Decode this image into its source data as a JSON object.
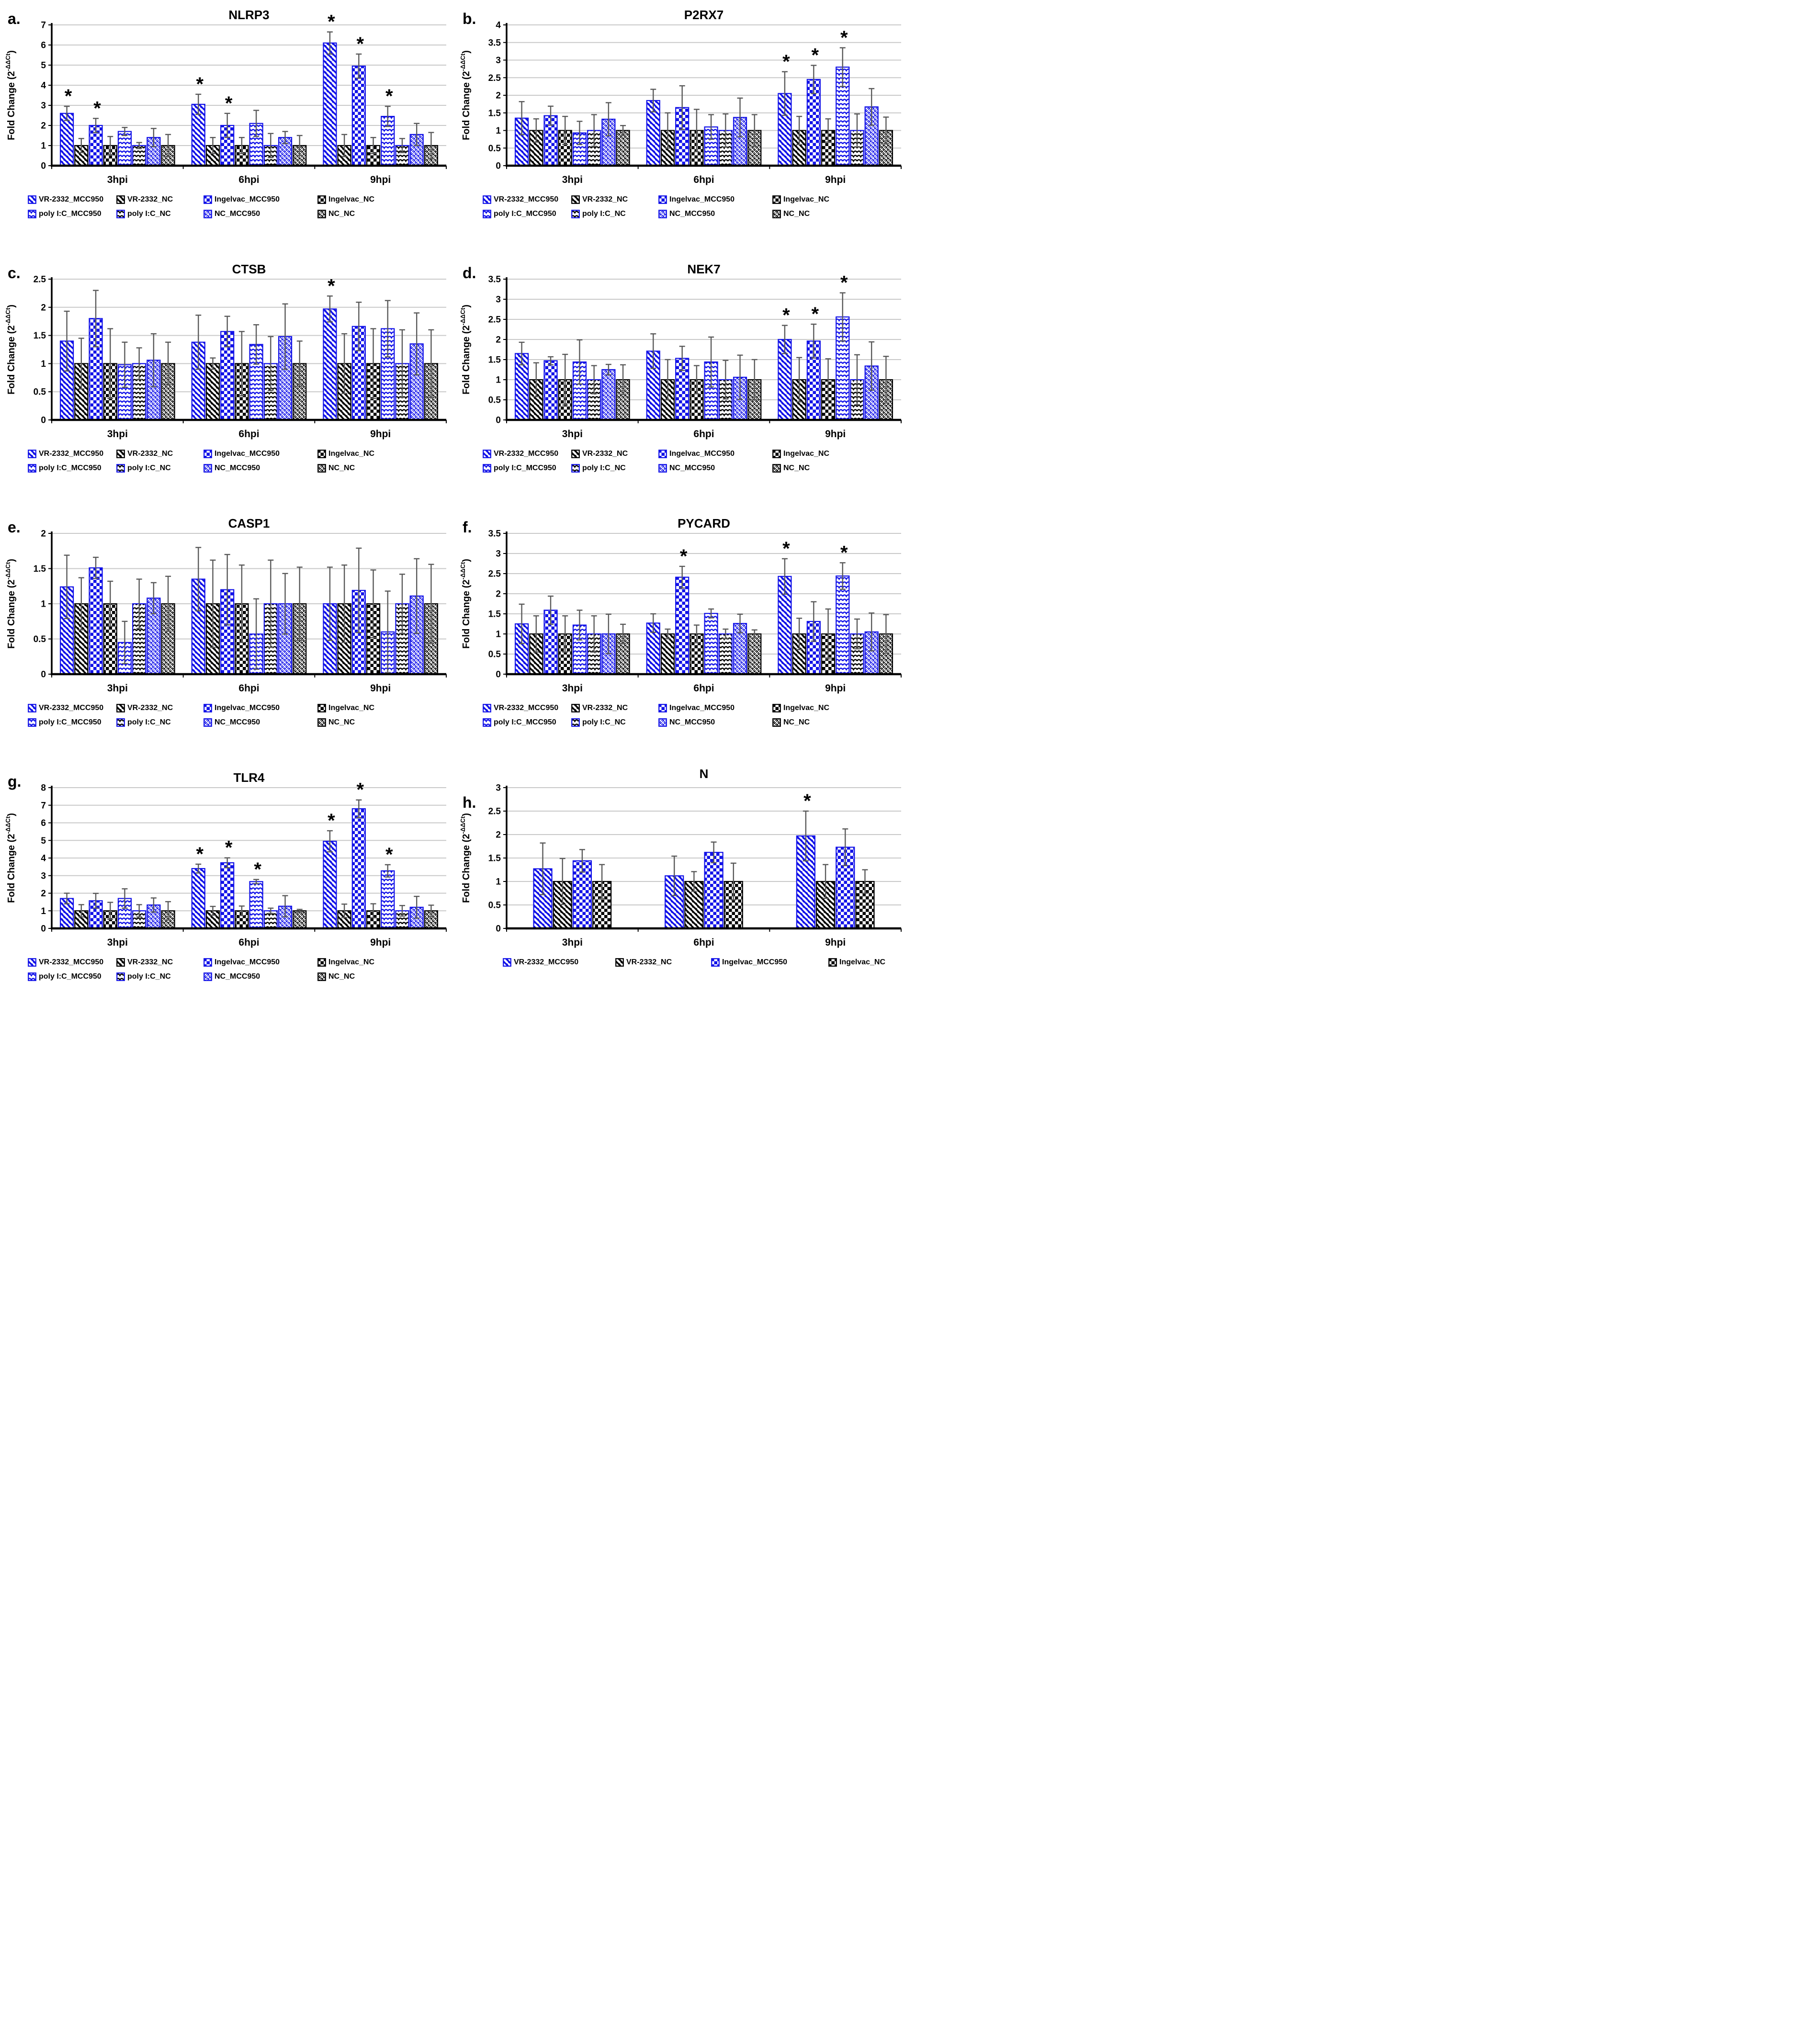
{
  "figure": {
    "background": "#ffffff",
    "ylabel": {
      "prefix": "Fold Change (2",
      "sup": "-ΔΔCt",
      "suffix": ")"
    }
  },
  "colors": {
    "blue": "#1212e8",
    "black": "#000000",
    "error_bar": "#595959",
    "gridline": "#c9c9c9",
    "axis": "#000000",
    "star": "#000000"
  },
  "series_styles": [
    {
      "name": "VR-2332_MCC950",
      "border": "blue",
      "pattern": "diagonal",
      "ink": "blue"
    },
    {
      "name": "VR-2332_NC",
      "border": "black",
      "pattern": "diagonal",
      "ink": "black"
    },
    {
      "name": "Ingelvac_MCC950",
      "border": "blue",
      "pattern": "checker",
      "ink": "blue"
    },
    {
      "name": "Ingelvac_NC",
      "border": "black",
      "pattern": "checker",
      "ink": "black"
    },
    {
      "name": "poly I:C_MCC950",
      "border": "blue",
      "pattern": "wave",
      "ink": "blue"
    },
    {
      "name": "poly I:C_NC",
      "border": "blue",
      "pattern": "wave",
      "ink": "black"
    },
    {
      "name": "NC_MCC950",
      "border": "blue",
      "pattern": "lattice",
      "ink": "blue"
    },
    {
      "name": "NC_NC",
      "border": "black",
      "pattern": "lattice",
      "ink": "black"
    }
  ],
  "chart_data": [
    {
      "type": "bar",
      "panel": "a.",
      "title": "NLRP3",
      "categories": [
        "3hpi",
        "6hpi",
        "9hpi"
      ],
      "ylim": [
        0,
        7
      ],
      "ystep": 1,
      "yticks": [
        "0",
        "1",
        "2",
        "3",
        "4",
        "5",
        "6",
        "7"
      ],
      "grid": true,
      "series": [
        {
          "name": "VR-2332_MCC950",
          "values": [
            2.6,
            3.05,
            6.1
          ],
          "errors": [
            0.35,
            0.5,
            0.55
          ]
        },
        {
          "name": "VR-2332_NC",
          "values": [
            1.0,
            1.0,
            1.0
          ],
          "errors": [
            0.35,
            0.4,
            0.55
          ]
        },
        {
          "name": "Ingelvac_MCC950",
          "values": [
            2.0,
            2.0,
            4.95
          ],
          "errors": [
            0.35,
            0.6,
            0.6
          ]
        },
        {
          "name": "Ingelvac_NC",
          "values": [
            1.0,
            1.0,
            1.0
          ],
          "errors": [
            0.45,
            0.4,
            0.4
          ]
        },
        {
          "name": "poly I:C_MCC950",
          "values": [
            1.7,
            2.1,
            2.45
          ],
          "errors": [
            0.2,
            0.65,
            0.5
          ]
        },
        {
          "name": "poly I:C_NC",
          "values": [
            1.0,
            1.0,
            1.0
          ],
          "errors": [
            0.15,
            0.6,
            0.35
          ]
        },
        {
          "name": "NC_MCC950",
          "values": [
            1.4,
            1.4,
            1.55
          ],
          "errors": [
            0.45,
            0.3,
            0.55
          ]
        },
        {
          "name": "NC_NC",
          "values": [
            1.0,
            1.0,
            1.0
          ],
          "errors": [
            0.55,
            0.5,
            0.65
          ]
        }
      ],
      "stars": [
        {
          "group": 0,
          "series": 0
        },
        {
          "group": 0,
          "series": 2
        },
        {
          "group": 1,
          "series": 0
        },
        {
          "group": 1,
          "series": 2
        },
        {
          "group": 2,
          "series": 0
        },
        {
          "group": 2,
          "series": 2
        },
        {
          "group": 2,
          "series": 4
        }
      ]
    },
    {
      "type": "bar",
      "panel": "b.",
      "title": "P2RX7",
      "categories": [
        "3hpi",
        "6hpi",
        "9hpi"
      ],
      "ylim": [
        0,
        4
      ],
      "ystep": 0.5,
      "yticks": [
        "0",
        "0.5",
        "1",
        "1.5",
        "2",
        "2.5",
        "3",
        "3.5",
        "4"
      ],
      "grid": true,
      "series": [
        {
          "name": "VR-2332_MCC950",
          "values": [
            1.35,
            1.85,
            2.05
          ],
          "errors": [
            0.47,
            0.32,
            0.62
          ]
        },
        {
          "name": "VR-2332_NC",
          "values": [
            1.0,
            1.0,
            1.0
          ],
          "errors": [
            0.33,
            0.5,
            0.4
          ]
        },
        {
          "name": "Ingelvac_MCC950",
          "values": [
            1.42,
            1.65,
            2.45
          ],
          "errors": [
            0.27,
            0.62,
            0.4
          ]
        },
        {
          "name": "Ingelvac_NC",
          "values": [
            1.0,
            1.0,
            1.0
          ],
          "errors": [
            0.4,
            0.6,
            0.33
          ]
        },
        {
          "name": "poly I:C_MCC950",
          "values": [
            0.93,
            1.1,
            2.8
          ],
          "errors": [
            0.33,
            0.35,
            0.55
          ]
        },
        {
          "name": "poly I:C_NC",
          "values": [
            1.0,
            1.0,
            1.0
          ],
          "errors": [
            0.45,
            0.47,
            0.47
          ]
        },
        {
          "name": "NC_MCC950",
          "values": [
            1.32,
            1.37,
            1.67
          ],
          "errors": [
            0.47,
            0.55,
            0.52
          ]
        },
        {
          "name": "NC_NC",
          "values": [
            1.0,
            1.0,
            1.0
          ],
          "errors": [
            0.14,
            0.45,
            0.38
          ]
        }
      ],
      "stars": [
        {
          "group": 2,
          "series": 0
        },
        {
          "group": 2,
          "series": 2
        },
        {
          "group": 2,
          "series": 4
        }
      ]
    },
    {
      "type": "bar",
      "panel": "c.",
      "title": "CTSB",
      "categories": [
        "3hpi",
        "6hpi",
        "9hpi"
      ],
      "ylim": [
        0,
        2.5
      ],
      "ystep": 0.5,
      "yticks": [
        "0",
        "0.5",
        "1",
        "1.5",
        "2",
        "2.5"
      ],
      "grid": true,
      "series": [
        {
          "name": "VR-2332_MCC950",
          "values": [
            1.4,
            1.38,
            1.97
          ],
          "errors": [
            0.53,
            0.48,
            0.23
          ]
        },
        {
          "name": "VR-2332_NC",
          "values": [
            1.0,
            1.0,
            1.0
          ],
          "errors": [
            0.45,
            0.1,
            0.53
          ]
        },
        {
          "name": "Ingelvac_MCC950",
          "values": [
            1.8,
            1.57,
            1.66
          ],
          "errors": [
            0.5,
            0.27,
            0.43
          ]
        },
        {
          "name": "Ingelvac_NC",
          "values": [
            1.0,
            1.0,
            1.0
          ],
          "errors": [
            0.62,
            0.57,
            0.62
          ]
        },
        {
          "name": "poly I:C_MCC950",
          "values": [
            0.98,
            1.34,
            1.62
          ],
          "errors": [
            0.4,
            0.35,
            0.5
          ]
        },
        {
          "name": "poly I:C_NC",
          "values": [
            1.0,
            1.0,
            1.0
          ],
          "errors": [
            0.28,
            0.48,
            0.6
          ]
        },
        {
          "name": "NC_MCC950",
          "values": [
            1.06,
            1.48,
            1.35
          ],
          "errors": [
            0.47,
            0.58,
            0.55
          ]
        },
        {
          "name": "NC_NC",
          "values": [
            1.0,
            1.0,
            1.0
          ],
          "errors": [
            0.38,
            0.4,
            0.6
          ]
        }
      ],
      "stars": [
        {
          "group": 2,
          "series": 0
        }
      ]
    },
    {
      "type": "bar",
      "panel": "d.",
      "title": "NEK7",
      "categories": [
        "3hpi",
        "6hpi",
        "9hpi"
      ],
      "ylim": [
        0,
        3.5
      ],
      "ystep": 0.5,
      "yticks": [
        "0",
        "0.5",
        "1",
        "1.5",
        "2",
        "2.5",
        "3",
        "3.5"
      ],
      "grid": true,
      "series": [
        {
          "name": "VR-2332_MCC950",
          "values": [
            1.65,
            1.71,
            2.0
          ],
          "errors": [
            0.28,
            0.43,
            0.35
          ]
        },
        {
          "name": "VR-2332_NC",
          "values": [
            1.0,
            1.0,
            1.0
          ],
          "errors": [
            0.42,
            0.5,
            0.55
          ]
        },
        {
          "name": "Ingelvac_MCC950",
          "values": [
            1.47,
            1.53,
            1.96
          ],
          "errors": [
            0.1,
            0.3,
            0.42
          ]
        },
        {
          "name": "Ingelvac_NC",
          "values": [
            1.0,
            1.0,
            1.0
          ],
          "errors": [
            0.63,
            0.35,
            0.52
          ]
        },
        {
          "name": "poly I:C_MCC950",
          "values": [
            1.44,
            1.44,
            2.56
          ],
          "errors": [
            0.55,
            0.62,
            0.6
          ]
        },
        {
          "name": "poly I:C_NC",
          "values": [
            1.0,
            1.0,
            1.0
          ],
          "errors": [
            0.35,
            0.48,
            0.62
          ]
        },
        {
          "name": "NC_MCC950",
          "values": [
            1.25,
            1.06,
            1.34
          ],
          "errors": [
            0.13,
            0.55,
            0.6
          ]
        },
        {
          "name": "NC_NC",
          "values": [
            1.0,
            1.0,
            1.0
          ],
          "errors": [
            0.37,
            0.5,
            0.58
          ]
        }
      ],
      "stars": [
        {
          "group": 2,
          "series": 0
        },
        {
          "group": 2,
          "series": 2
        },
        {
          "group": 2,
          "series": 4
        }
      ]
    },
    {
      "type": "bar",
      "panel": "e.",
      "title": "CASP1",
      "categories": [
        "3hpi",
        "6hpi",
        "9hpi"
      ],
      "ylim": [
        0,
        2
      ],
      "ystep": 0.5,
      "yticks": [
        "0",
        "0.5",
        "1",
        "1.5",
        "2"
      ],
      "grid": true,
      "series": [
        {
          "name": "VR-2332_MCC950",
          "values": [
            1.24,
            1.35,
            1.0
          ],
          "errors": [
            0.45,
            0.45,
            0.52
          ]
        },
        {
          "name": "VR-2332_NC",
          "values": [
            1.0,
            1.0,
            1.0
          ],
          "errors": [
            0.37,
            0.62,
            0.55
          ]
        },
        {
          "name": "Ingelvac_MCC950",
          "values": [
            1.51,
            1.2,
            1.19
          ],
          "errors": [
            0.15,
            0.5,
            0.6
          ]
        },
        {
          "name": "Ingelvac_NC",
          "values": [
            1.0,
            1.0,
            1.0
          ],
          "errors": [
            0.32,
            0.55,
            0.48
          ]
        },
        {
          "name": "poly I:C_MCC950",
          "values": [
            0.45,
            0.57,
            0.6
          ],
          "errors": [
            0.3,
            0.5,
            0.58
          ]
        },
        {
          "name": "poly I:C_NC",
          "values": [
            1.0,
            1.0,
            1.0
          ],
          "errors": [
            0.35,
            0.62,
            0.42
          ]
        },
        {
          "name": "NC_MCC950",
          "values": [
            1.08,
            1.0,
            1.11
          ],
          "errors": [
            0.22,
            0.43,
            0.53
          ]
        },
        {
          "name": "NC_NC",
          "values": [
            1.0,
            1.0,
            1.0
          ],
          "errors": [
            0.39,
            0.52,
            0.56
          ]
        }
      ],
      "stars": []
    },
    {
      "type": "bar",
      "panel": "f.",
      "title": "PYCARD",
      "categories": [
        "3hpi",
        "6hpi",
        "9hpi"
      ],
      "ylim": [
        0,
        3.5
      ],
      "ystep": 0.5,
      "yticks": [
        "0",
        "0.5",
        "1",
        "1.5",
        "2",
        "2.5",
        "3",
        "3.5"
      ],
      "grid": true,
      "series": [
        {
          "name": "VR-2332_MCC950",
          "values": [
            1.25,
            1.27,
            2.43
          ],
          "errors": [
            0.49,
            0.23,
            0.44
          ]
        },
        {
          "name": "VR-2332_NC",
          "values": [
            1.0,
            1.0,
            1.0
          ],
          "errors": [
            0.45,
            0.12,
            0.39
          ]
        },
        {
          "name": "Ingelvac_MCC950",
          "values": [
            1.59,
            2.41,
            1.31
          ],
          "errors": [
            0.35,
            0.27,
            0.49
          ]
        },
        {
          "name": "Ingelvac_NC",
          "values": [
            1.0,
            1.0,
            1.0
          ],
          "errors": [
            0.45,
            0.22,
            0.62
          ]
        },
        {
          "name": "poly I:C_MCC950",
          "values": [
            1.22,
            1.51,
            2.44
          ],
          "errors": [
            0.37,
            0.11,
            0.33
          ]
        },
        {
          "name": "poly I:C_NC",
          "values": [
            1.0,
            1.0,
            1.0
          ],
          "errors": [
            0.45,
            0.12,
            0.37
          ]
        },
        {
          "name": "NC_MCC950",
          "values": [
            1.0,
            1.26,
            1.05
          ],
          "errors": [
            0.49,
            0.23,
            0.47
          ]
        },
        {
          "name": "NC_NC",
          "values": [
            1.0,
            1.0,
            1.0
          ],
          "errors": [
            0.24,
            0.1,
            0.48
          ]
        }
      ],
      "stars": [
        {
          "group": 1,
          "series": 2
        },
        {
          "group": 2,
          "series": 0
        },
        {
          "group": 2,
          "series": 4
        }
      ]
    },
    {
      "type": "bar",
      "panel": "g.",
      "title": "TLR4",
      "categories": [
        "3hpi",
        "6hpi",
        "9hpi"
      ],
      "ylim": [
        0,
        8
      ],
      "ystep": 1,
      "yticks": [
        "0",
        "1",
        "2",
        "3",
        "4",
        "5",
        "6",
        "7",
        "8"
      ],
      "grid": true,
      "series": [
        {
          "name": "VR-2332_MCC950",
          "values": [
            1.7,
            3.4,
            4.95
          ],
          "errors": [
            0.3,
            0.25,
            0.6
          ]
        },
        {
          "name": "VR-2332_NC",
          "values": [
            1.0,
            1.0,
            1.0
          ],
          "errors": [
            0.35,
            0.25,
            0.38
          ]
        },
        {
          "name": "Ingelvac_MCC950",
          "values": [
            1.57,
            3.73,
            6.8
          ],
          "errors": [
            0.42,
            0.28,
            0.5
          ]
        },
        {
          "name": "Ingelvac_NC",
          "values": [
            1.0,
            1.0,
            1.0
          ],
          "errors": [
            0.48,
            0.27,
            0.4
          ]
        },
        {
          "name": "poly I:C_MCC950",
          "values": [
            1.7,
            2.66,
            3.27
          ],
          "errors": [
            0.55,
            0.12,
            0.35
          ]
        },
        {
          "name": "poly I:C_NC",
          "values": [
            1.0,
            1.0,
            1.0
          ],
          "errors": [
            0.35,
            0.15,
            0.3
          ]
        },
        {
          "name": "NC_MCC950",
          "values": [
            1.33,
            1.26,
            1.2
          ],
          "errors": [
            0.4,
            0.6,
            0.62
          ]
        },
        {
          "name": "NC_NC",
          "values": [
            1.0,
            1.0,
            1.0
          ],
          "errors": [
            0.52,
            0.08,
            0.32
          ]
        }
      ],
      "stars": [
        {
          "group": 1,
          "series": 0
        },
        {
          "group": 1,
          "series": 2
        },
        {
          "group": 1,
          "series": 4
        },
        {
          "group": 2,
          "series": 0
        },
        {
          "group": 2,
          "series": 2
        },
        {
          "group": 2,
          "series": 4
        }
      ]
    },
    {
      "type": "bar",
      "panel": "h.",
      "title": "N",
      "categories": [
        "3hpi",
        "6hpi",
        "9hpi"
      ],
      "ylim": [
        0,
        3
      ],
      "ystep": 0.5,
      "yticks": [
        "0",
        "0.5",
        "1",
        "1.5",
        "2",
        "2.5",
        "3"
      ],
      "grid": true,
      "series": [
        {
          "name": "VR-2332_MCC950",
          "values": [
            1.27,
            1.12,
            1.97
          ],
          "errors": [
            0.55,
            0.42,
            0.53
          ]
        },
        {
          "name": "VR-2332_NC",
          "values": [
            1.0,
            1.0,
            1.0
          ],
          "errors": [
            0.49,
            0.21,
            0.36
          ]
        },
        {
          "name": "Ingelvac_MCC950",
          "values": [
            1.44,
            1.62,
            1.73
          ],
          "errors": [
            0.24,
            0.22,
            0.39
          ]
        },
        {
          "name": "Ingelvac_NC",
          "values": [
            1.0,
            1.0,
            1.0
          ],
          "errors": [
            0.36,
            0.39,
            0.25
          ]
        }
      ],
      "stars": [
        {
          "group": 2,
          "series": 0
        }
      ]
    }
  ]
}
